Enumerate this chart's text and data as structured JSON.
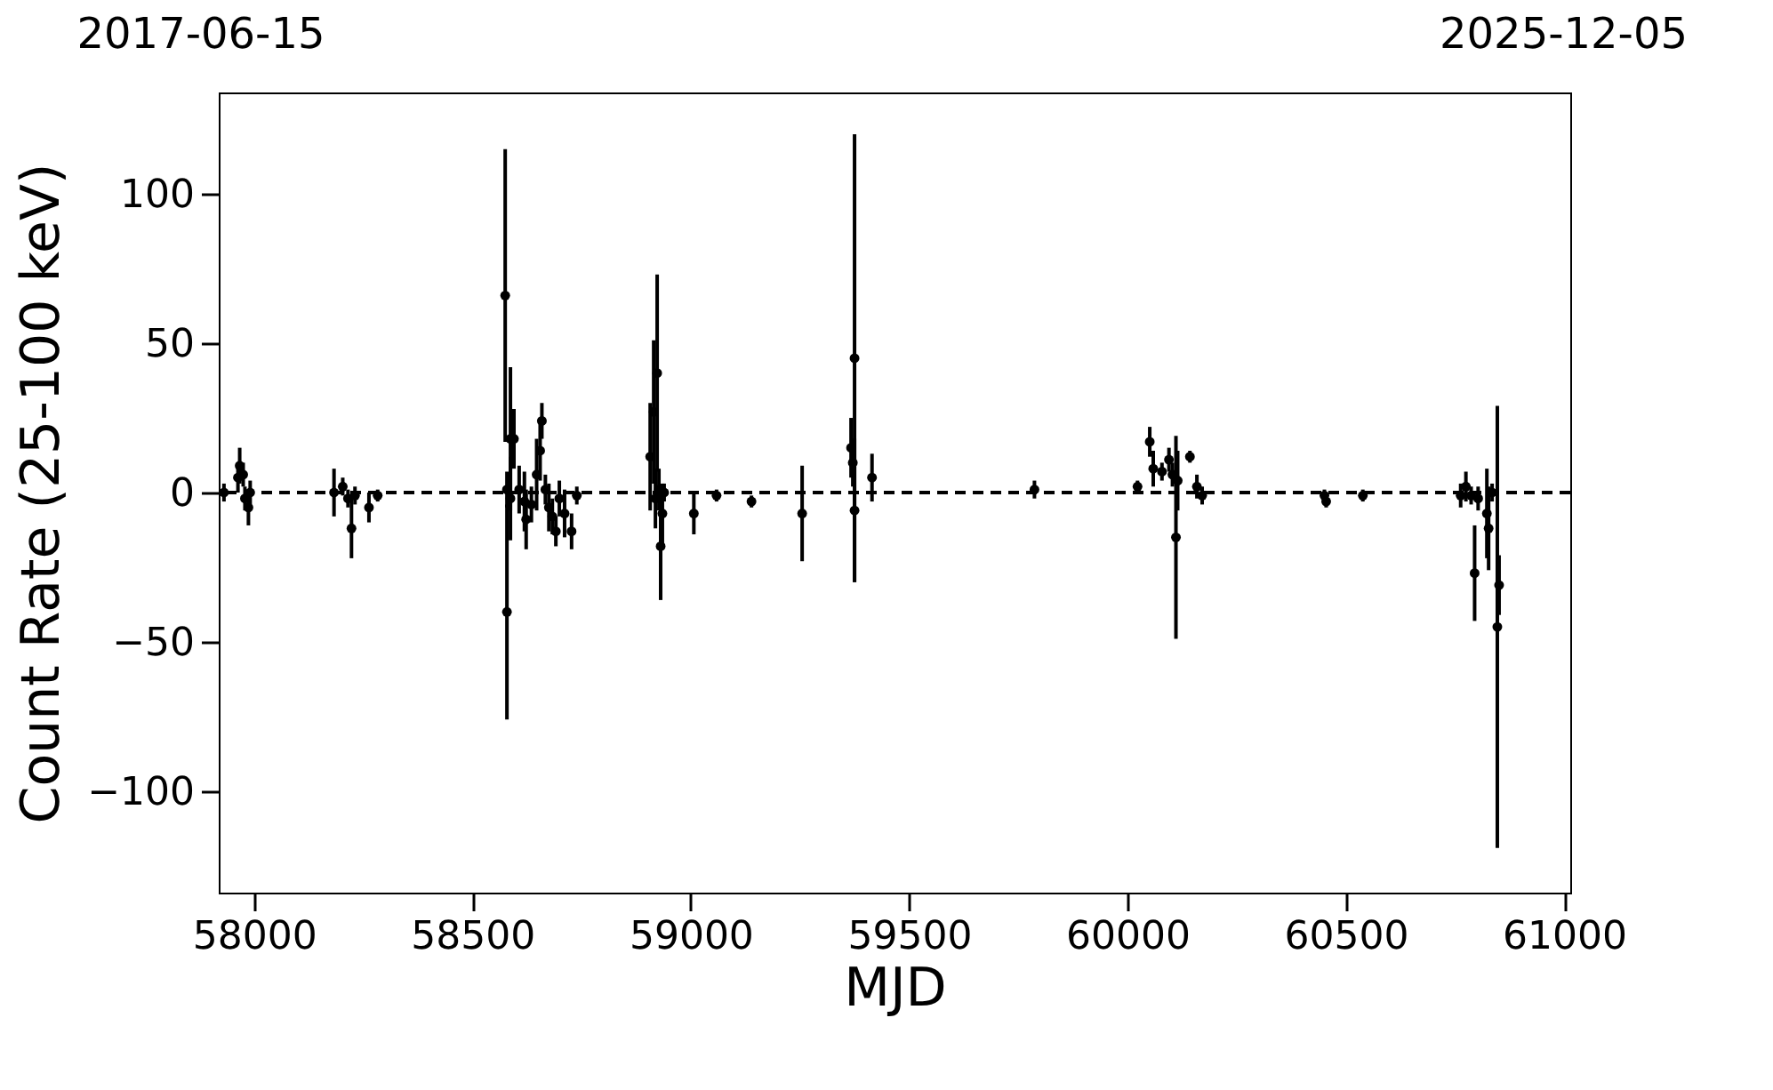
{
  "chart_data": {
    "type": "scatter",
    "xlabel": "MJD",
    "ylabel": "Count Rate (25-100 keV)",
    "xlim": [
      57919,
      61014
    ],
    "xticks": [
      58000,
      58500,
      59000,
      59500,
      60000,
      60500,
      61000
    ],
    "annotations": [
      "2017-06-15",
      "2025-12-05"
    ],
    "ylim": [
      -134,
      134
    ],
    "yticks": [
      -100,
      -50,
      0,
      50,
      100
    ],
    "marker": "circle",
    "grid": false,
    "ref_lines": [
      {
        "axis": "y",
        "value": 0,
        "color": "#000000",
        "line_style": "dashed"
      }
    ],
    "series": [
      {
        "color": "#000000",
        "x": [
          57931,
          57963,
          57967,
          57975,
          57979,
          57987,
          57991,
          58183,
          58203,
          58215,
          58223,
          58231,
          58263,
          58283,
          58575,
          58579,
          58579,
          58587,
          58587,
          58595,
          58607,
          58619,
          58623,
          58635,
          58647,
          58655,
          58659,
          58667,
          58675,
          58683,
          58691,
          58699,
          58711,
          58727,
          58739,
          58907,
          58915,
          58919,
          58923,
          58927,
          58931,
          58935,
          58939,
          59007,
          59059,
          59139,
          59255,
          59367,
          59371,
          59375,
          59375,
          59415,
          59787,
          60023,
          60051,
          60059,
          60079,
          60095,
          60103,
          60111,
          60115,
          60143,
          60159,
          60171,
          60451,
          60455,
          60539,
          60763,
          60775,
          60787,
          60795,
          60803,
          60823,
          60827,
          60835,
          60847,
          60851
        ],
        "values": [
          0,
          5,
          9,
          6,
          -2,
          -5,
          0,
          0,
          2,
          -2,
          -12,
          -1,
          -5,
          -1,
          66,
          1,
          -40,
          -2,
          18,
          18,
          1,
          -3,
          -9,
          -4,
          6,
          14,
          24,
          1,
          -5,
          -8,
          -13,
          -2,
          -7,
          -13,
          -1,
          12,
          27,
          -2,
          40,
          1,
          -18,
          -7,
          0,
          -7,
          -1,
          -3,
          -7,
          15,
          10,
          45,
          -6,
          5,
          1,
          2,
          17,
          8,
          7,
          11,
          6,
          -15,
          4,
          12,
          2,
          -1,
          -1,
          -3,
          -1,
          -1,
          2,
          -1,
          -27,
          -2,
          -7,
          -12,
          0,
          -45,
          -31
        ],
        "errors": [
          3,
          5,
          6,
          4,
          4,
          6,
          4,
          8,
          3,
          3,
          10,
          3,
          5,
          2,
          49,
          6,
          36,
          14,
          24,
          10,
          8,
          10,
          10,
          6,
          12,
          10,
          6,
          5,
          8,
          6,
          5,
          6,
          8,
          6,
          3,
          18,
          24,
          10,
          33,
          7,
          18,
          10,
          3,
          7,
          2,
          2,
          16,
          10,
          8,
          75,
          24,
          8,
          3,
          2,
          5,
          6,
          3,
          4,
          4,
          34,
          10,
          2,
          4,
          3,
          2,
          2,
          2,
          4,
          5,
          3,
          16,
          4,
          15,
          14,
          3,
          74,
          10
        ]
      }
    ]
  }
}
